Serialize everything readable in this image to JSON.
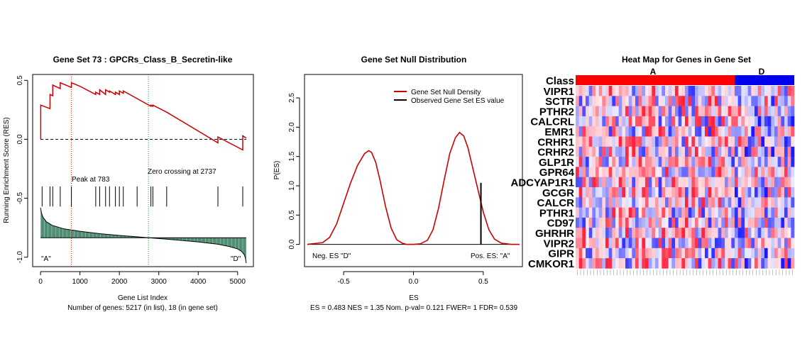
{
  "chart_data": [
    {
      "type": "line",
      "title": "Gene Set  73 : GPCRs_Class_B_Secretin-like",
      "xlabel": "Gene List Index",
      "subtitle": "Number of genes: 5217 (in list), 18 (in gene set)",
      "ylabel": "Running Enrichment Score (RES)",
      "xlim": [
        -200,
        5400
      ],
      "ylim": [
        -1.08,
        0.55
      ],
      "x_ticks": [
        0,
        1000,
        2000,
        3000,
        4000,
        5000
      ],
      "x_tick_labels": [
        "0",
        "1000",
        "2000",
        "3000",
        "4000",
        "5000"
      ],
      "y_ticks": [
        0.5,
        0.0,
        -0.5,
        -1.0
      ],
      "y_tick_labels": [
        "0.5",
        "0.0",
        "-0.5",
        "-1.0"
      ],
      "series": [
        {
          "x": [
            0,
            5,
            5,
            240,
            240,
            310,
            310,
            500,
            500,
            783,
            783,
            1000,
            1400,
            1400,
            1500,
            1500,
            1650,
            1650,
            1750,
            1750,
            1900,
            1900,
            2000,
            2000,
            2100,
            2100,
            2800,
            2800,
            2850,
            2850,
            3200,
            3200,
            4500,
            4500,
            5130,
            5130,
            5217
          ],
          "y": [
            0.0,
            0.0,
            0.29,
            0.26,
            0.38,
            0.37,
            0.46,
            0.43,
            0.48,
            0.44,
            0.48,
            0.45,
            0.38,
            0.4,
            0.38,
            0.42,
            0.38,
            0.42,
            0.4,
            0.41,
            0.38,
            0.4,
            0.38,
            0.41,
            0.39,
            0.41,
            0.28,
            0.29,
            0.28,
            0.29,
            0.23,
            0.23,
            -0.03,
            0.02,
            -0.09,
            0.03,
            0.01
          ]
        }
      ],
      "hits": [
        40,
        240,
        310,
        500,
        783,
        1400,
        1500,
        1650,
        1750,
        1900,
        2000,
        2100,
        2450,
        2800,
        2850,
        3200,
        4500,
        5130
      ],
      "hit_band": [
        -0.4,
        -0.57
      ],
      "metric_baseline": -0.835,
      "metric_curve": {
        "x": [
          0,
          20,
          60,
          150,
          300,
          600,
          1000,
          1500,
          2000,
          2500,
          2737,
          3000,
          3500,
          4000,
          4500,
          4800,
          5000,
          5100,
          5170,
          5200,
          5217
        ],
        "y": [
          -0.58,
          -0.62,
          -0.66,
          -0.7,
          -0.73,
          -0.76,
          -0.78,
          -0.8,
          -0.815,
          -0.828,
          -0.835,
          -0.842,
          -0.855,
          -0.87,
          -0.89,
          -0.91,
          -0.93,
          -0.95,
          -0.98,
          -1.01,
          -1.05
        ]
      },
      "vlines": [
        {
          "x": 783,
          "color": "#cc2200"
        },
        {
          "x": 2737,
          "color": "#00aa00"
        }
      ],
      "peak_label": "Peak at 783",
      "zero_label": "Zero crossing at 2737",
      "label_A": "\"A\"",
      "label_D": "\"D\"",
      "line_color": "#cc0000",
      "fill_color": "#4f8f74"
    },
    {
      "type": "line",
      "title": "Gene Set Null Distribution",
      "xlabel": "ES",
      "subtitle": "ES = 0.483  NES = 1.35 Nom. p-val= 0.121 FWER= 1 FDR= 0.539",
      "ylabel": "P(ES)",
      "xlim": [
        -0.78,
        0.78
      ],
      "ylim": [
        -0.38,
        2.9
      ],
      "x_ticks": [
        -0.5,
        0.0,
        0.5
      ],
      "x_tick_labels": [
        "-0.5",
        "0.0",
        "0.5"
      ],
      "y_ticks": [
        0.0,
        0.5,
        1.0,
        1.5,
        2.0,
        2.5
      ],
      "y_tick_labels": [
        "0.0",
        "0.5",
        "1.0",
        "1.5",
        "2.0",
        "2.5"
      ],
      "series": [
        {
          "name": "Gene Set Null Density",
          "x": [
            -0.76,
            -0.65,
            -0.6,
            -0.55,
            -0.5,
            -0.45,
            -0.4,
            -0.35,
            -0.32,
            -0.3,
            -0.27,
            -0.24,
            -0.2,
            -0.16,
            -0.12,
            -0.08,
            -0.05,
            0.0,
            0.05,
            0.1,
            0.14,
            0.18,
            0.22,
            0.26,
            0.3,
            0.33,
            0.36,
            0.39,
            0.42,
            0.46,
            0.5,
            0.54,
            0.58,
            0.63,
            0.7,
            0.76
          ],
          "y": [
            0.0,
            0.03,
            0.12,
            0.35,
            0.7,
            1.05,
            1.35,
            1.55,
            1.6,
            1.57,
            1.4,
            1.1,
            0.65,
            0.28,
            0.08,
            0.02,
            0.0,
            0.0,
            0.01,
            0.07,
            0.25,
            0.62,
            1.1,
            1.55,
            1.82,
            1.91,
            1.85,
            1.65,
            1.35,
            0.95,
            0.55,
            0.25,
            0.09,
            0.02,
            0.0,
            0.0
          ]
        },
        {
          "name": "Observed Gene Set ES value",
          "x": [
            0.483,
            0.483
          ],
          "y": [
            0.0,
            1.05
          ]
        }
      ],
      "series_colors": [
        "#cc0000",
        "#000000"
      ],
      "label_neg": "Neg. ES \"D\"",
      "label_pos": "Pos. ES: \"A\""
    },
    {
      "type": "heatmap",
      "title": "Heat Map for Genes in Gene Set",
      "class_label": "Class",
      "class_A": "A",
      "class_D": "D",
      "n_samples": 66,
      "n_samples_A": 48,
      "rows": [
        "VIPR1",
        "SCTR",
        "PTHR2",
        "CALCRL",
        "EMR1",
        "CRHR1",
        "CRHR2",
        "GLP1R",
        "GPR64",
        "ADCYAP1R1",
        "GCGR",
        "CALCR",
        "PTHR1",
        "CD97",
        "GHRHR",
        "VIPR2",
        "GIPR",
        "CMKOR1"
      ],
      "class_colors": {
        "A": "#ff0000",
        "D": "#0000ee"
      }
    }
  ]
}
